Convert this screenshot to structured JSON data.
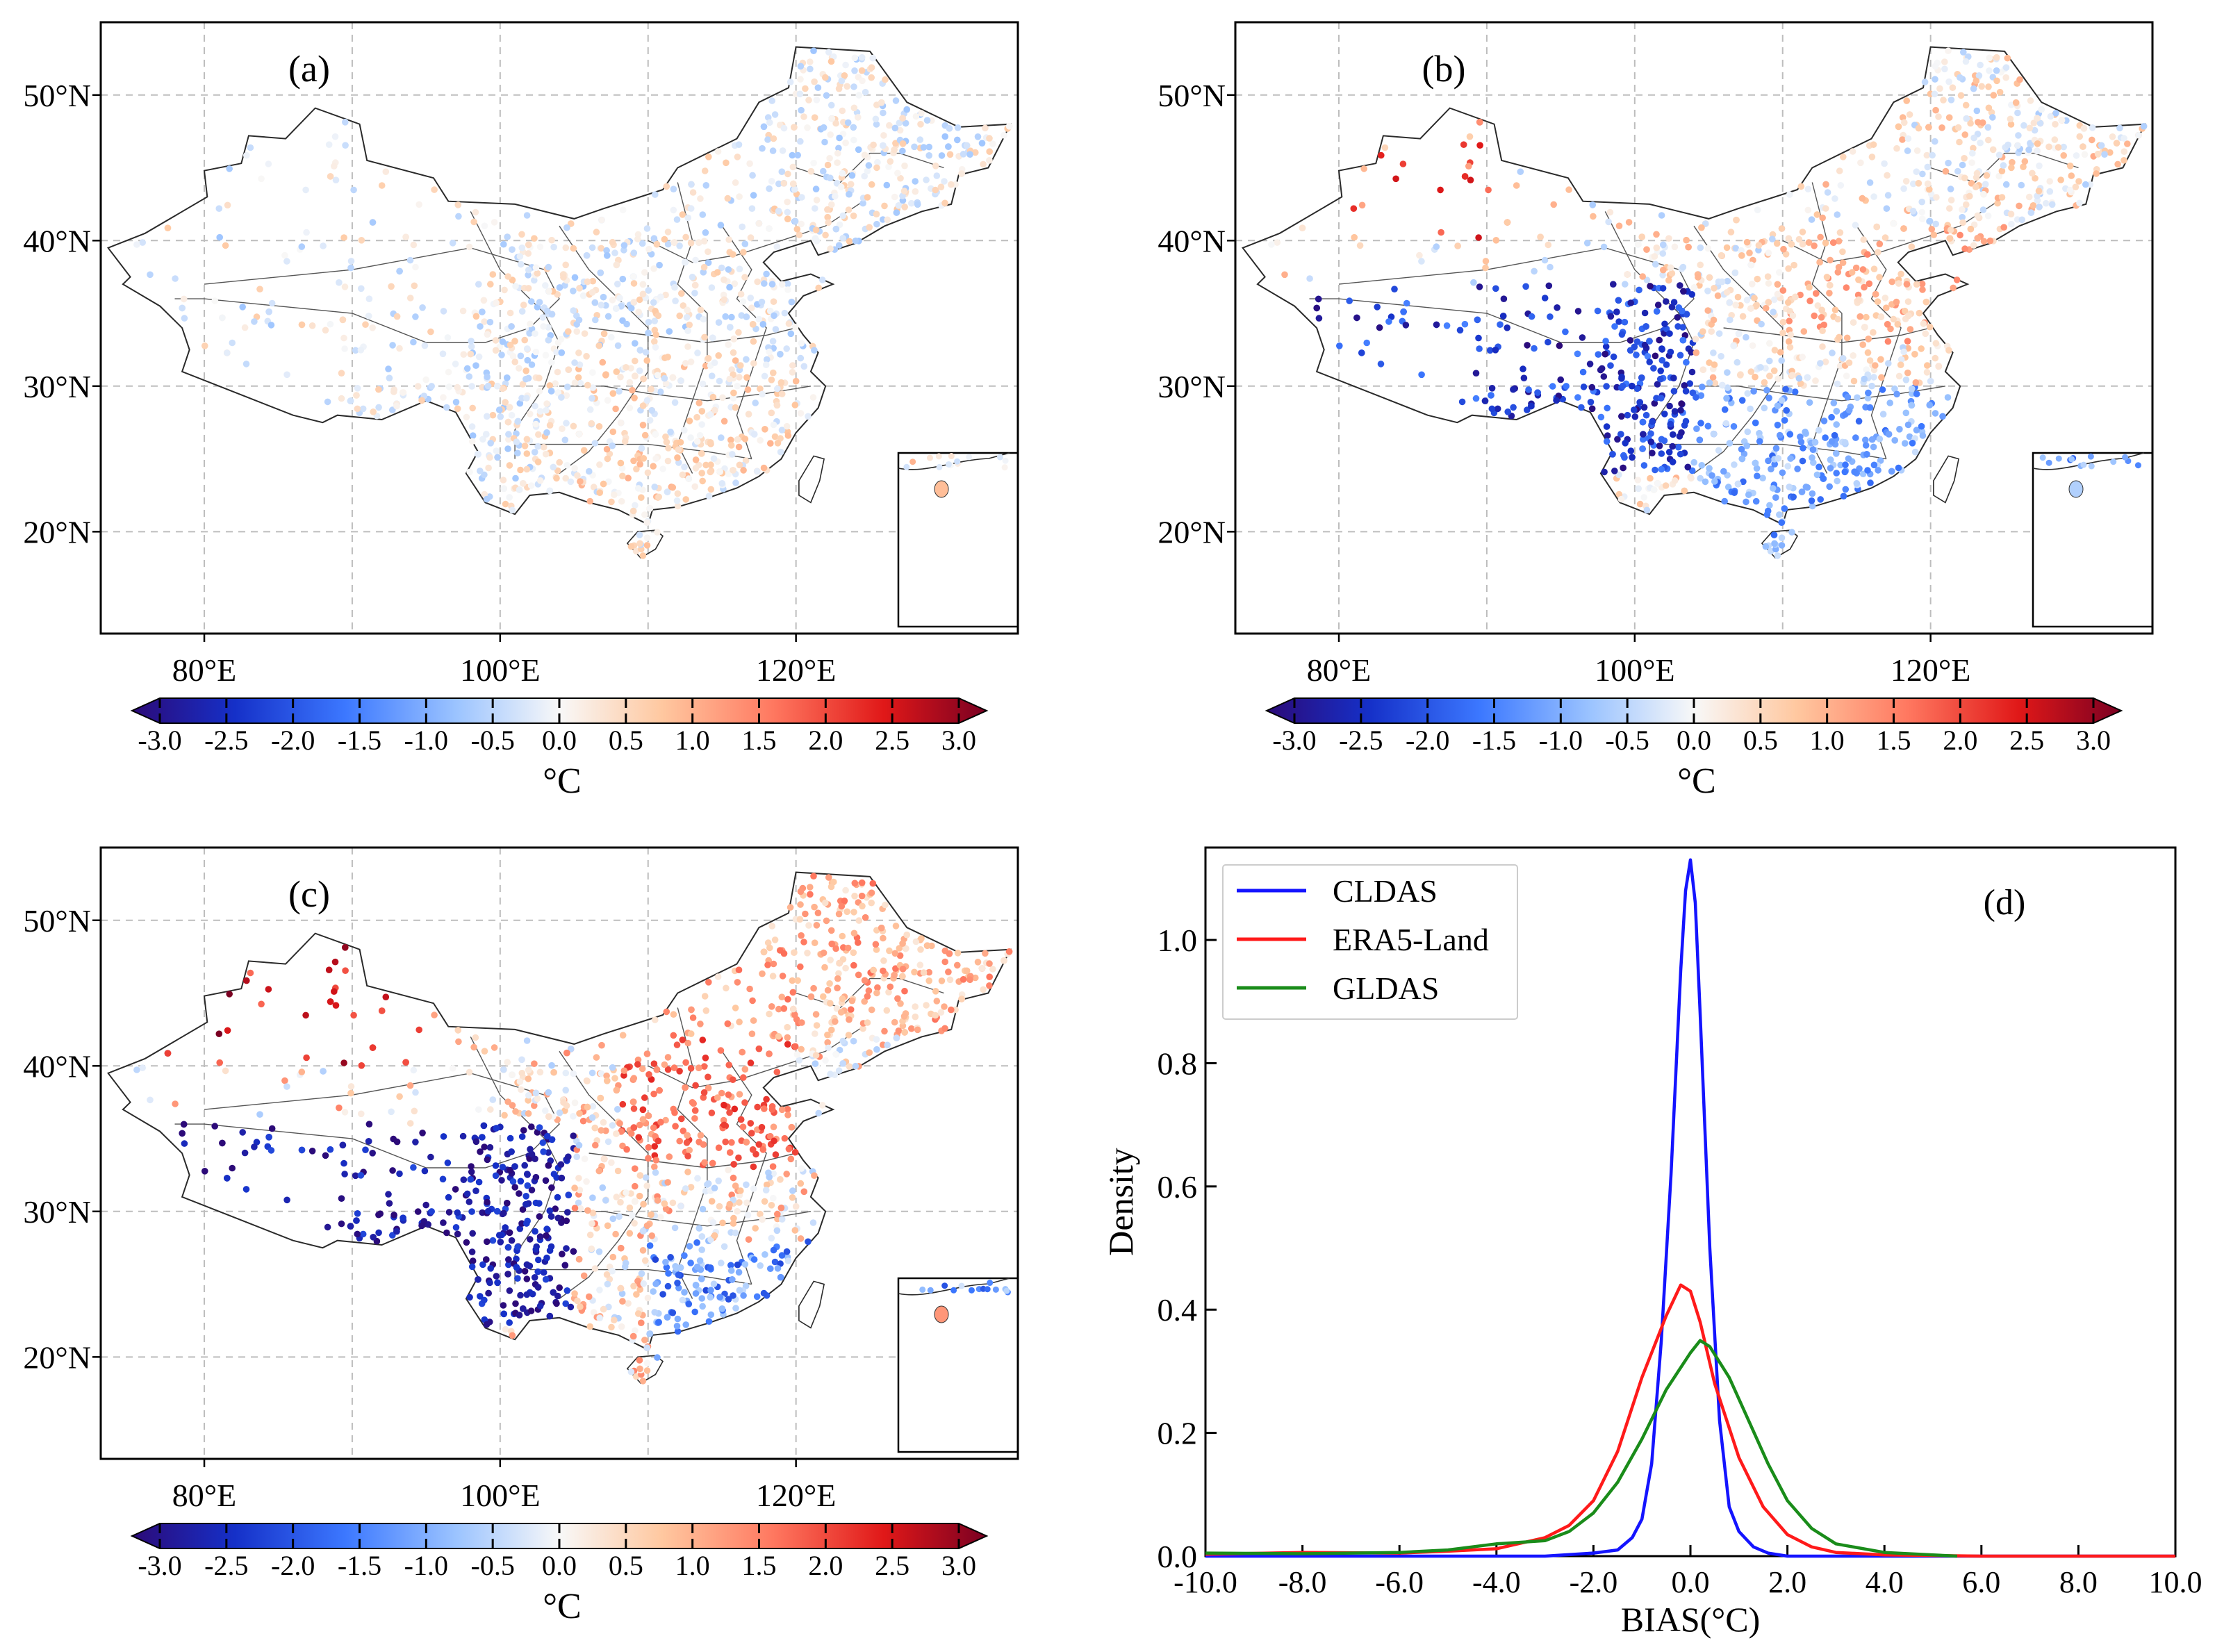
{
  "colors": {
    "frame": "#000000",
    "grid": "#bdbdbd",
    "coast": "#2a2a2a",
    "series": {
      "CLDAS": "#1414ff",
      "ERA5-Land": "#ff1a1a",
      "GLDAS": "#1a8c1a"
    }
  },
  "maps": {
    "lon_ticks": [
      "80°E",
      "100°E",
      "120°E"
    ],
    "lat_ticks": [
      "50°N",
      "40°N",
      "30°N",
      "20°N"
    ],
    "panels": [
      {
        "label": "(a)",
        "cbar_unit": "°C"
      },
      {
        "label": "(b)",
        "cbar_unit": "°C"
      },
      {
        "label": "(c)",
        "cbar_unit": "°C"
      }
    ]
  },
  "colorbar": {
    "ticks": [
      "-3.0",
      "-2.5",
      "-2.0",
      "-1.5",
      "-1.0",
      "-0.5",
      "0.0",
      "0.5",
      "1.0",
      "1.5",
      "2.0",
      "2.5",
      "3.0"
    ],
    "unit": "°C"
  },
  "chart_data": {
    "type": "line",
    "title": "",
    "panel_label": "(d)",
    "xlabel": "BIAS(°C)",
    "ylabel": "Density",
    "xlim": [
      -10,
      10
    ],
    "ylim": [
      0,
      1.15
    ],
    "xticks": [
      "-10.0",
      "-8.0",
      "-6.0",
      "-4.0",
      "-2.0",
      "0.0",
      "2.0",
      "4.0",
      "6.0",
      "8.0",
      "10.0"
    ],
    "yticks": [
      "0.0",
      "0.2",
      "0.4",
      "0.6",
      "0.8",
      "1.0"
    ],
    "legend_position": "top-left",
    "series": [
      {
        "name": "CLDAS",
        "x": [
          -10,
          -3.0,
          -2.0,
          -1.5,
          -1.2,
          -1.0,
          -0.8,
          -0.6,
          -0.4,
          -0.2,
          -0.1,
          0.0,
          0.1,
          0.2,
          0.4,
          0.6,
          0.8,
          1.0,
          1.3,
          1.6,
          2.0,
          10
        ],
        "y": [
          0,
          0,
          0.005,
          0.01,
          0.03,
          0.06,
          0.15,
          0.35,
          0.62,
          0.95,
          1.08,
          1.13,
          1.06,
          0.88,
          0.5,
          0.22,
          0.08,
          0.04,
          0.015,
          0.005,
          0,
          0
        ]
      },
      {
        "name": "ERA5-Land",
        "x": [
          -10,
          -8,
          -6,
          -5,
          -4,
          -3,
          -2.5,
          -2.0,
          -1.5,
          -1.0,
          -0.5,
          -0.2,
          0.0,
          0.2,
          0.5,
          1.0,
          1.5,
          2.0,
          2.5,
          3.0,
          4.0,
          6,
          10
        ],
        "y": [
          0.003,
          0.006,
          0.005,
          0.008,
          0.012,
          0.03,
          0.05,
          0.09,
          0.17,
          0.29,
          0.39,
          0.44,
          0.43,
          0.38,
          0.28,
          0.16,
          0.08,
          0.035,
          0.015,
          0.006,
          0.002,
          0,
          0
        ]
      },
      {
        "name": "GLDAS",
        "x": [
          -10,
          -8,
          -6,
          -5,
          -4,
          -3,
          -2.5,
          -2.0,
          -1.5,
          -1.0,
          -0.5,
          0.0,
          0.2,
          0.4,
          0.8,
          1.2,
          1.6,
          2.0,
          2.5,
          3.0,
          4.0,
          5.0,
          5.5
        ],
        "y": [
          0.005,
          0.004,
          0.006,
          0.01,
          0.02,
          0.025,
          0.04,
          0.07,
          0.12,
          0.19,
          0.27,
          0.33,
          0.35,
          0.34,
          0.29,
          0.22,
          0.15,
          0.09,
          0.045,
          0.02,
          0.006,
          0.002,
          0
        ]
      }
    ]
  }
}
